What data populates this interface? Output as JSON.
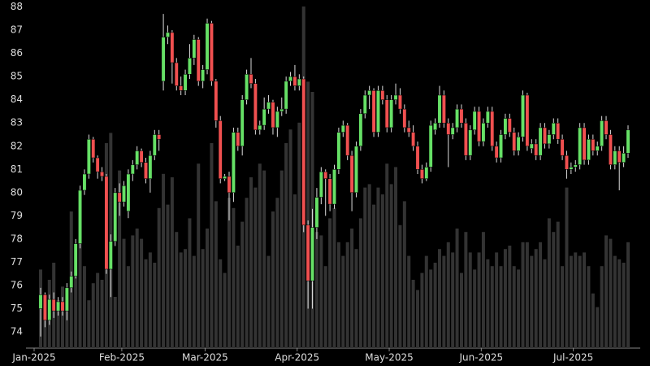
{
  "chart_data": {
    "type": "candlestick",
    "categories": [
      "Jan-2025",
      null,
      null,
      null,
      null,
      null,
      null,
      null,
      null,
      null,
      null,
      null,
      null,
      null,
      null,
      null,
      null,
      null,
      null,
      null,
      "Feb-2025",
      null,
      null,
      null,
      null,
      null,
      null,
      null,
      null,
      null,
      null,
      null,
      null,
      null,
      null,
      null,
      null,
      null,
      null,
      "Mar-2025",
      null,
      null,
      null,
      null,
      null,
      null,
      null,
      null,
      null,
      null,
      null,
      null,
      null,
      null,
      null,
      null,
      null,
      null,
      null,
      null,
      "Apr-2025",
      null,
      null,
      null,
      null,
      null,
      null,
      null,
      null,
      null,
      null,
      null,
      null,
      null,
      null,
      null,
      null,
      null,
      null,
      null,
      null,
      "May-2025",
      null,
      null,
      null,
      null,
      null,
      null,
      null,
      null,
      null,
      null,
      null,
      null,
      null,
      null,
      null,
      null,
      null,
      null,
      null,
      null,
      "Jun-2025",
      null,
      null,
      null,
      null,
      null,
      null,
      null,
      null,
      null,
      null,
      null,
      null,
      null,
      null,
      null,
      null,
      null,
      null,
      null,
      null,
      "Jul-2025",
      null,
      null,
      null,
      null,
      null,
      null,
      null,
      null,
      null,
      null,
      null
    ],
    "open": [
      75.0,
      75.6,
      74.5,
      75.4,
      74.9,
      75.3,
      74.9,
      75.9,
      76.4,
      77.8,
      80.1,
      80.8,
      82.3,
      81.5,
      80.9,
      80.7,
      76.7,
      77.9,
      80.0,
      79.6,
      79.2,
      80.8,
      81.2,
      81.8,
      81.3,
      80.6,
      81.6,
      82.5,
      84.8,
      86.7,
      86.9,
      85.6,
      84.6,
      84.4,
      85.1,
      85.8,
      86.6,
      84.8,
      85.3,
      87.3,
      84.8,
      83.1,
      80.6,
      80.7,
      80.0,
      82.6,
      82.0,
      84.0,
      85.1,
      84.7,
      82.7,
      82.9,
      83.6,
      83.9,
      82.8,
      83.5,
      83.6,
      84.8,
      85.0,
      84.6,
      84.9,
      78.6,
      76.2,
      78.5,
      79.8,
      80.9,
      80.6,
      79.5,
      81.0,
      82.6,
      82.9,
      81.6,
      80.0,
      82.0,
      83.4,
      84.2,
      84.4,
      82.6,
      84.4,
      84.0,
      82.8,
      84.0,
      84.2,
      83.6,
      82.8,
      82.6,
      82.0,
      81.0,
      80.6,
      81.1,
      82.7,
      83.0,
      84.2,
      83.0,
      82.5,
      82.8,
      83.6,
      83.0,
      81.6,
      82.7,
      83.5,
      82.2,
      83.0,
      83.5,
      82.0,
      81.5,
      82.5,
      83.2,
      82.6,
      81.8,
      82.4,
      84.2,
      81.9,
      82.1,
      81.6,
      82.8,
      82.1,
      82.5,
      83.0,
      82.3,
      81.6,
      81.0,
      81.1,
      81.2,
      82.8,
      81.4,
      82.3,
      81.8,
      82.0,
      83.1,
      82.5,
      81.2,
      81.8,
      81.3,
      81.7
    ],
    "high": [
      75.9,
      75.7,
      75.6,
      75.7,
      75.5,
      75.5,
      76.1,
      76.6,
      78.0,
      80.3,
      81.0,
      82.5,
      82.4,
      81.6,
      81.1,
      80.8,
      78.2,
      80.2,
      80.4,
      80.5,
      81.0,
      81.4,
      82.0,
      81.9,
      81.5,
      81.8,
      82.7,
      82.7,
      87.7,
      87.2,
      87.0,
      85.8,
      85.0,
      85.3,
      86.4,
      86.8,
      86.7,
      85.5,
      87.5,
      87.4,
      84.9,
      83.3,
      80.8,
      80.9,
      82.8,
      82.8,
      84.2,
      85.3,
      85.8,
      84.9,
      83.1,
      84.1,
      84.2,
      84.0,
      83.7,
      84.1,
      85.0,
      85.2,
      85.5,
      85.1,
      85.0,
      78.8,
      79.3,
      80.2,
      81.1,
      81.0,
      80.8,
      81.2,
      82.8,
      83.1,
      83.0,
      81.8,
      82.2,
      83.6,
      84.4,
      84.6,
      84.5,
      84.6,
      84.6,
      84.2,
      84.2,
      84.7,
      84.5,
      83.8,
      83.1,
      82.9,
      82.2,
      81.2,
      81.3,
      83.1,
      83.2,
      84.6,
      84.4,
      83.2,
      83.0,
      83.8,
      83.8,
      83.2,
      82.9,
      83.7,
      83.7,
      83.2,
      83.7,
      83.7,
      82.2,
      82.7,
      83.4,
      83.4,
      82.8,
      82.6,
      84.4,
      84.3,
      82.3,
      82.3,
      83.0,
      83.0,
      82.7,
      83.2,
      83.2,
      82.5,
      81.8,
      81.3,
      81.4,
      83.0,
      83.0,
      82.5,
      82.5,
      82.2,
      83.3,
      83.3,
      82.7,
      82.0,
      82.0,
      82.0,
      82.9
    ],
    "low": [
      73.8,
      74.2,
      74.3,
      74.6,
      74.7,
      74.7,
      74.5,
      75.7,
      76.3,
      77.6,
      79.9,
      80.6,
      81.3,
      80.6,
      80.5,
      76.5,
      75.5,
      77.7,
      79.0,
      79.4,
      78.9,
      80.5,
      81.0,
      81.1,
      80.4,
      80.0,
      81.4,
      81.8,
      84.4,
      86.4,
      84.7,
      84.4,
      84.2,
      84.2,
      84.9,
      85.5,
      84.6,
      84.5,
      85.1,
      84.6,
      82.8,
      80.4,
      80.5,
      78.8,
      79.6,
      81.8,
      81.6,
      83.8,
      84.5,
      82.5,
      82.5,
      82.7,
      83.4,
      82.5,
      82.4,
      83.3,
      83.4,
      84.6,
      84.4,
      84.4,
      78.3,
      75.0,
      75.0,
      78.0,
      79.5,
      79.0,
      79.2,
      79.3,
      80.8,
      82.4,
      81.4,
      79.2,
      79.8,
      81.8,
      83.2,
      83.6,
      82.4,
      82.4,
      83.8,
      82.6,
      82.6,
      83.8,
      83.4,
      82.6,
      82.4,
      81.8,
      80.8,
      80.4,
      80.5,
      80.9,
      82.5,
      82.8,
      82.8,
      81.1,
      82.3,
      82.6,
      82.8,
      81.4,
      81.4,
      82.5,
      82.0,
      82.0,
      82.8,
      81.8,
      81.3,
      81.3,
      82.3,
      82.4,
      81.6,
      81.6,
      82.2,
      81.8,
      81.7,
      81.4,
      81.4,
      81.9,
      81.9,
      82.3,
      82.1,
      81.4,
      80.6,
      80.8,
      80.9,
      81.0,
      81.2,
      81.2,
      81.6,
      81.6,
      81.8,
      82.3,
      81.0,
      81.0,
      80.1,
      81.1,
      81.5
    ],
    "close": [
      75.6,
      74.5,
      75.4,
      74.9,
      75.3,
      74.9,
      75.9,
      76.4,
      77.8,
      80.1,
      80.8,
      82.3,
      81.5,
      80.9,
      80.7,
      76.7,
      77.9,
      80.0,
      79.6,
      80.3,
      80.8,
      81.2,
      81.8,
      81.3,
      80.6,
      81.6,
      82.5,
      82.3,
      86.7,
      86.9,
      85.6,
      84.6,
      84.4,
      85.1,
      85.8,
      86.6,
      84.8,
      85.3,
      87.3,
      84.8,
      83.1,
      80.6,
      80.7,
      80.0,
      82.6,
      82.0,
      84.0,
      85.1,
      84.7,
      82.7,
      82.9,
      83.6,
      83.9,
      82.8,
      83.5,
      83.6,
      84.8,
      85.0,
      84.6,
      84.9,
      78.6,
      76.2,
      78.5,
      79.8,
      80.9,
      80.6,
      79.5,
      81.0,
      82.6,
      82.9,
      81.6,
      80.0,
      82.0,
      83.4,
      84.2,
      84.4,
      82.6,
      84.4,
      84.0,
      82.8,
      84.0,
      84.2,
      83.6,
      82.8,
      82.6,
      82.0,
      81.0,
      80.6,
      81.1,
      82.9,
      83.0,
      84.2,
      83.0,
      82.5,
      82.8,
      83.6,
      83.0,
      81.6,
      82.7,
      83.5,
      82.2,
      83.0,
      83.5,
      82.0,
      81.5,
      82.5,
      83.2,
      82.6,
      81.8,
      82.4,
      84.2,
      82.0,
      82.1,
      81.6,
      82.8,
      82.1,
      82.5,
      83.0,
      82.3,
      81.6,
      81.0,
      81.1,
      81.2,
      82.8,
      81.4,
      82.3,
      81.8,
      82.0,
      83.1,
      82.5,
      81.2,
      81.8,
      81.3,
      81.7,
      82.7
    ],
    "volume": [
      23,
      12,
      20,
      25,
      14,
      18,
      16,
      40,
      30,
      31,
      24,
      14,
      19,
      22,
      20,
      60,
      63,
      15,
      52,
      32,
      24,
      33,
      35,
      32,
      26,
      28,
      25,
      41,
      51,
      42,
      50,
      34,
      28,
      29,
      38,
      27,
      54,
      29,
      35,
      60,
      43,
      26,
      22,
      44,
      41,
      30,
      37,
      44,
      50,
      47,
      54,
      52,
      27,
      40,
      44,
      52,
      60,
      64,
      45,
      66,
      100,
      78,
      75,
      34,
      33,
      24,
      38,
      41,
      31,
      27,
      31,
      35,
      29,
      38,
      47,
      48,
      42,
      47,
      45,
      54,
      48,
      53,
      36,
      43,
      27,
      20,
      17,
      22,
      27,
      23,
      25,
      29,
      27,
      31,
      28,
      35,
      22,
      34,
      28,
      23,
      28,
      34,
      26,
      24,
      28,
      24,
      29,
      30,
      24,
      23,
      31,
      31,
      27,
      29,
      31,
      26,
      38,
      34,
      37,
      24,
      47,
      27,
      28,
      27,
      28,
      24,
      16,
      12,
      24,
      33,
      32,
      27,
      26,
      25,
      31
    ],
    "up_color": "#66e066",
    "down_color": "#f05050",
    "volume_color": "#333333",
    "ylim": [
      73.3,
      88.3
    ],
    "yticks": [
      74,
      75,
      76,
      77,
      78,
      79,
      80,
      81,
      82,
      83,
      84,
      85,
      86,
      87,
      88
    ]
  }
}
